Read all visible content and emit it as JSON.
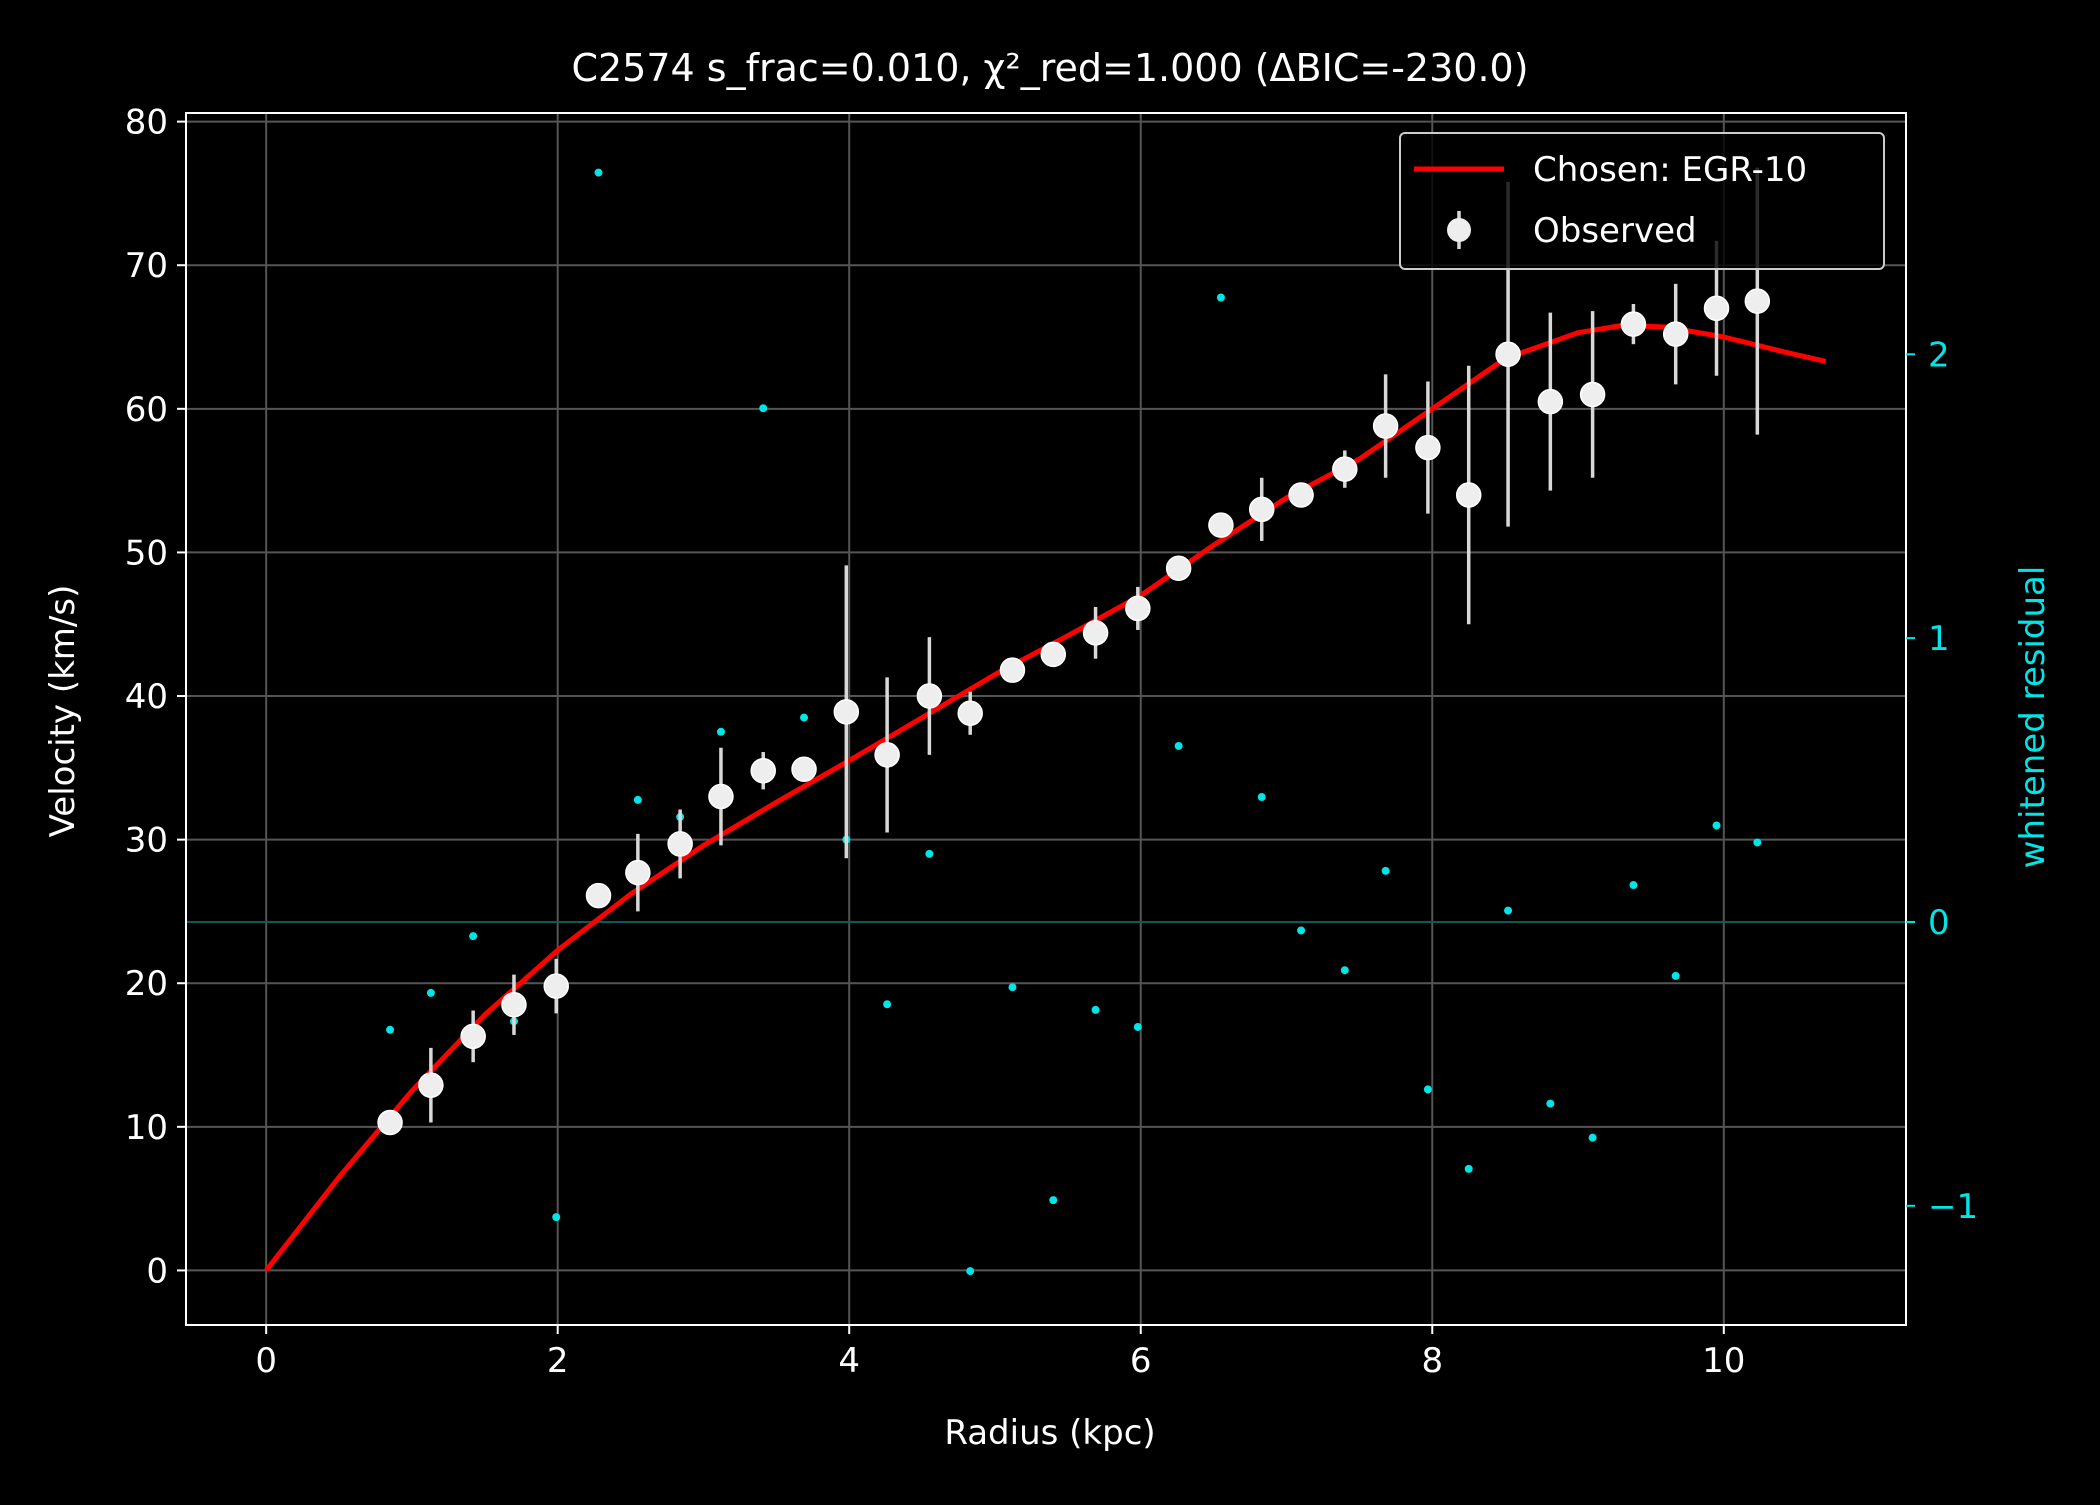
{
  "chart_data": {
    "type": "scatter",
    "title": "C2574  s_frac=0.010, χ²_red=1.000  (ΔBIC=-230.0)",
    "xlabel": "Radius (kpc)",
    "ylabel": "Velocity (km/s)",
    "y2label": "whitened residual",
    "xlim": [
      -0.55,
      11.25
    ],
    "ylim": [
      -3.8,
      80.6
    ],
    "y2lim": [
      -1.42,
      2.85
    ],
    "xticks": [
      0,
      2,
      4,
      6,
      8,
      10
    ],
    "xtick_labels": [
      "0",
      "2",
      "4",
      "6",
      "8",
      "10"
    ],
    "yticks": [
      0,
      10,
      20,
      30,
      40,
      50,
      60,
      70,
      80
    ],
    "ytick_labels": [
      "0",
      "10",
      "20",
      "30",
      "40",
      "50",
      "60",
      "70",
      "80"
    ],
    "y2ticks": [
      -1,
      0,
      1,
      2
    ],
    "y2tick_labels": [
      "−1",
      "0",
      "1",
      "2"
    ],
    "grid": true,
    "legend_position": "top-right",
    "colors": {
      "background": "#000000",
      "foreground": "#ffffff",
      "model": "#ff0000",
      "observed": "#ffffff",
      "residual": "#00e5e5",
      "grid": "#555555"
    },
    "series": [
      {
        "name": "Chosen: EGR-10",
        "kind": "line",
        "x": [
          0,
          0.5,
          1.0,
          1.5,
          2.0,
          2.5,
          3.0,
          3.5,
          4.0,
          4.5,
          5.0,
          5.5,
          6.0,
          6.5,
          7.0,
          7.5,
          8.0,
          8.5,
          9.0,
          9.3,
          9.6,
          10.0,
          10.4,
          10.7
        ],
        "y": [
          0,
          6.5,
          12.5,
          17.8,
          22.3,
          26.2,
          29.6,
          32.6,
          35.5,
          38.5,
          41.5,
          44.2,
          47.0,
          50.5,
          53.8,
          56.5,
          60.0,
          63.5,
          65.3,
          65.8,
          65.7,
          65.0,
          64.0,
          63.3
        ]
      },
      {
        "name": "Observed",
        "kind": "errorbar",
        "x": [
          0.85,
          1.13,
          1.42,
          1.7,
          1.99,
          2.28,
          2.55,
          2.84,
          3.12,
          3.41,
          3.69,
          3.98,
          4.26,
          4.55,
          4.83,
          5.12,
          5.4,
          5.69,
          5.98,
          6.26,
          6.55,
          6.83,
          7.1,
          7.4,
          7.68,
          7.97,
          8.25,
          8.52,
          8.81,
          9.1,
          9.38,
          9.67,
          9.95,
          10.23
        ],
        "y": [
          10.3,
          12.9,
          16.3,
          18.5,
          19.8,
          26.1,
          27.7,
          29.7,
          33.0,
          34.8,
          34.9,
          38.9,
          35.9,
          40.0,
          38.8,
          41.8,
          42.9,
          44.4,
          46.1,
          48.9,
          51.9,
          53.0,
          54.0,
          55.8,
          58.8,
          57.3,
          54.0,
          63.8,
          60.5,
          61.0,
          65.9,
          65.2,
          67.0,
          67.5
        ],
        "err": [
          0.4,
          2.6,
          1.8,
          2.1,
          1.9,
          0.4,
          2.7,
          2.4,
          3.4,
          1.3,
          0.8,
          10.2,
          5.4,
          4.1,
          1.5,
          0.4,
          0.4,
          1.8,
          1.5,
          0.6,
          0.6,
          2.2,
          0.6,
          1.3,
          3.6,
          4.6,
          9.0,
          12.0,
          6.2,
          5.8,
          1.4,
          3.5,
          4.7,
          9.3
        ]
      },
      {
        "name": "whitened residual",
        "kind": "scatter",
        "axis": "right",
        "x": [
          0.85,
          1.13,
          1.42,
          1.7,
          1.99,
          2.28,
          2.55,
          2.84,
          3.12,
          3.41,
          3.69,
          3.98,
          4.26,
          4.55,
          4.83,
          5.12,
          5.4,
          5.69,
          5.98,
          6.26,
          6.55,
          6.83,
          7.1,
          7.4,
          7.68,
          7.97,
          8.25,
          8.52,
          8.81,
          9.1,
          9.38,
          9.67,
          9.95,
          10.23
        ],
        "y": [
          -0.38,
          -0.25,
          -0.05,
          -0.35,
          -1.04,
          2.64,
          0.43,
          0.37,
          0.67,
          1.81,
          0.72,
          0.29,
          -0.29,
          0.24,
          -1.23,
          -0.23,
          -0.98,
          -0.31,
          -0.37,
          0.62,
          2.2,
          0.44,
          -0.03,
          -0.17,
          0.18,
          -0.59,
          -0.87,
          0.04,
          -0.64,
          -0.76,
          0.13,
          -0.19,
          0.34,
          0.28
        ]
      }
    ]
  }
}
